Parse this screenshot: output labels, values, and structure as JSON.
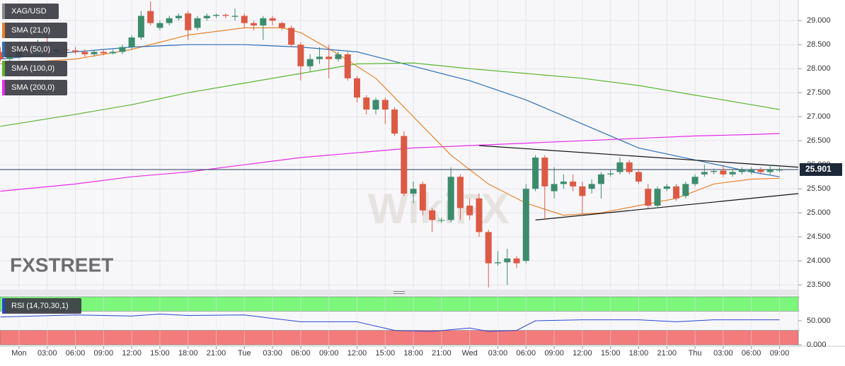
{
  "chart_data": [
    {
      "type": "candlestick",
      "name": "XAG/USD",
      "x": [
        -2,
        -1,
        0,
        1,
        2,
        3,
        4,
        5,
        6,
        7,
        8,
        9,
        10,
        11,
        12,
        13,
        14,
        15,
        16,
        17,
        18,
        19,
        20,
        21,
        22,
        23,
        24,
        25,
        26,
        27,
        28,
        29,
        30,
        31,
        32,
        33,
        34,
        35,
        36,
        37,
        38,
        39,
        40,
        41,
        42,
        43,
        44,
        45,
        46,
        47,
        48,
        49,
        50,
        51,
        52,
        53,
        54,
        55,
        56,
        57,
        58,
        59,
        60,
        61,
        62,
        63,
        64,
        65,
        66,
        67,
        68,
        69,
        70,
        71,
        72,
        73,
        74,
        75,
        76,
        77,
        78,
        79,
        80,
        81
      ],
      "open": [
        28.35,
        28.2,
        28.25,
        28.45,
        28.4,
        28.45,
        28.35,
        28.4,
        28.38,
        28.35,
        28.3,
        28.35,
        28.32,
        28.35,
        28.45,
        28.65,
        29.2,
        28.85,
        28.95,
        29.05,
        29.15,
        28.85,
        29.05,
        29.1,
        29.12,
        29.08,
        29.1,
        28.95,
        28.9,
        29.05,
        28.95,
        28.85,
        28.5,
        28.05,
        28.2,
        28.25,
        28.2,
        28.3,
        27.8,
        27.4,
        27.15,
        27.35,
        27.15,
        26.6,
        25.4,
        25.6,
        25.05,
        24.85,
        24.85,
        25.75,
        25.15,
        25.3,
        24.6,
        23.95,
        23.97,
        24.05,
        24.0,
        25.5,
        26.15,
        25.45,
        25.6,
        25.65,
        25.55,
        25.5,
        25.6,
        25.8,
        25.85,
        26.05,
        25.85,
        25.5,
        25.15,
        25.5,
        25.55,
        25.35,
        25.6,
        25.8,
        25.85,
        25.88,
        25.8,
        25.85,
        25.85,
        25.9,
        25.85,
        25.88
      ],
      "high": [
        28.45,
        28.35,
        28.5,
        28.55,
        28.6,
        28.7,
        28.45,
        28.45,
        28.45,
        28.4,
        28.4,
        28.4,
        28.4,
        28.5,
        28.7,
        29.2,
        29.4,
        29.0,
        29.1,
        29.15,
        29.2,
        29.1,
        29.15,
        29.15,
        29.15,
        29.25,
        29.15,
        29.0,
        29.1,
        29.1,
        28.98,
        28.9,
        28.55,
        28.3,
        28.45,
        28.5,
        28.35,
        28.35,
        27.85,
        27.45,
        27.4,
        27.4,
        27.2,
        26.7,
        25.65,
        25.65,
        25.1,
        24.9,
        25.95,
        25.8,
        25.3,
        25.4,
        24.65,
        24.2,
        24.25,
        24.1,
        25.6,
        26.2,
        26.2,
        25.95,
        25.8,
        25.8,
        25.65,
        25.7,
        25.85,
        25.9,
        26.15,
        26.1,
        25.9,
        25.6,
        25.55,
        25.6,
        25.6,
        25.65,
        25.8,
        26.0,
        25.92,
        26.0,
        25.9,
        25.95,
        25.95,
        25.95,
        26.0,
        25.95
      ],
      "low": [
        28.15,
        28.1,
        28.2,
        28.3,
        28.35,
        28.3,
        28.3,
        28.3,
        28.3,
        28.25,
        28.25,
        28.28,
        28.3,
        28.3,
        28.4,
        28.6,
        28.9,
        28.8,
        28.9,
        29.0,
        28.6,
        28.8,
        29.0,
        29.05,
        29.05,
        29.0,
        28.85,
        28.8,
        28.6,
        28.9,
        28.8,
        28.45,
        27.75,
        27.95,
        28.1,
        27.8,
        28.15,
        27.75,
        27.3,
        27.05,
        27.05,
        26.85,
        26.6,
        25.35,
        25.2,
        24.95,
        24.6,
        24.8,
        24.8,
        24.85,
        24.85,
        24.5,
        23.45,
        23.9,
        23.5,
        23.85,
        23.95,
        25.45,
        24.85,
        25.3,
        25.5,
        25.45,
        24.95,
        25.4,
        25.3,
        25.75,
        25.8,
        25.8,
        25.6,
        25.1,
        25.1,
        25.45,
        25.25,
        25.3,
        25.55,
        25.75,
        25.8,
        25.75,
        25.75,
        25.8,
        25.8,
        25.8,
        25.8,
        25.85
      ],
      "close": [
        28.2,
        28.25,
        28.45,
        28.4,
        28.45,
        28.35,
        28.4,
        28.38,
        28.35,
        28.3,
        28.35,
        28.32,
        28.35,
        28.45,
        28.65,
        29.1,
        28.95,
        28.95,
        29.05,
        29.1,
        28.8,
        29.05,
        29.1,
        29.12,
        29.1,
        29.1,
        28.95,
        28.9,
        29.05,
        29.0,
        28.85,
        28.5,
        28.05,
        28.2,
        28.25,
        28.2,
        28.3,
        27.8,
        27.4,
        27.15,
        27.35,
        27.15,
        26.65,
        25.4,
        25.5,
        25.05,
        24.85,
        24.85,
        25.75,
        25.1,
        24.95,
        24.6,
        23.95,
        23.97,
        24.05,
        23.95,
        25.5,
        26.15,
        25.55,
        25.6,
        25.65,
        25.55,
        25.35,
        25.6,
        25.8,
        25.82,
        26.05,
        25.85,
        25.65,
        25.15,
        25.5,
        25.55,
        25.3,
        25.6,
        25.75,
        25.85,
        25.87,
        25.8,
        25.85,
        25.9,
        25.9,
        25.85,
        25.9,
        25.9
      ],
      "up_color": "#3c8c6c",
      "down_color": "#dc5a44",
      "lines": [
        {
          "name": "SMA (21,0)",
          "color": "#e8822a",
          "x": [
            -2,
            6,
            12,
            18,
            24,
            28,
            30,
            34,
            38,
            42,
            46,
            50,
            54,
            58,
            62,
            66,
            70,
            74,
            78,
            81
          ],
          "values": [
            28.1,
            28.2,
            28.4,
            28.7,
            28.85,
            28.85,
            28.75,
            28.3,
            27.8,
            27.0,
            26.2,
            25.6,
            25.2,
            24.95,
            25.0,
            25.15,
            25.3,
            25.6,
            25.7,
            25.72
          ]
        },
        {
          "name": "SMA (50,0)",
          "color": "#2e6fb5",
          "x": [
            -2,
            6,
            12,
            18,
            24,
            30,
            36,
            42,
            48,
            54,
            60,
            66,
            72,
            78,
            81
          ],
          "values": [
            28.2,
            28.35,
            28.45,
            28.5,
            28.5,
            28.45,
            28.35,
            28.05,
            27.75,
            27.35,
            26.85,
            26.35,
            26.1,
            25.85,
            25.75
          ]
        },
        {
          "name": "SMA (100,0)",
          "color": "#5ab52e",
          "x": [
            -2,
            6,
            12,
            18,
            24,
            30,
            36,
            42,
            48,
            54,
            60,
            66,
            72,
            78,
            81
          ],
          "values": [
            26.8,
            27.05,
            27.25,
            27.5,
            27.7,
            27.9,
            28.1,
            28.12,
            28.0,
            27.9,
            27.8,
            27.65,
            27.45,
            27.25,
            27.15
          ]
        },
        {
          "name": "SMA (200,0)",
          "color": "#e82ae8",
          "x": [
            -2,
            6,
            12,
            18,
            24,
            30,
            36,
            42,
            48,
            54,
            60,
            66,
            72,
            78,
            81
          ],
          "values": [
            25.45,
            25.6,
            25.75,
            25.85,
            26.0,
            26.15,
            26.25,
            26.35,
            26.4,
            26.45,
            26.5,
            26.55,
            26.6,
            26.63,
            26.65
          ]
        }
      ],
      "trendlines": [
        {
          "x": [
            49,
            83
          ],
          "values": [
            26.4,
            25.95
          ]
        },
        {
          "x": [
            55,
            83
          ],
          "values": [
            24.85,
            25.4
          ]
        }
      ],
      "last_price": 25.901,
      "xlim": [
        -2.03,
        83
      ],
      "ylim": [
        23.4,
        29.43
      ],
      "yticks": [
        {
          "value": 23.5,
          "label": "23.500"
        },
        {
          "value": 24,
          "label": "24.000"
        },
        {
          "value": 24.5,
          "label": "24.500"
        },
        {
          "value": 25,
          "label": "25.000"
        },
        {
          "value": 25.5,
          "label": "25.500"
        },
        {
          "value": 26,
          "label": "26.000"
        },
        {
          "value": 26.5,
          "label": "26.500"
        },
        {
          "value": 27,
          "label": "27.000"
        },
        {
          "value": 27.5,
          "label": "27.500"
        },
        {
          "value": 28,
          "label": "28.000"
        },
        {
          "value": 28.5,
          "label": "28.500"
        },
        {
          "value": 29,
          "label": "29.000"
        }
      ],
      "xticks": [
        {
          "value": 0,
          "label": "Mon"
        },
        {
          "value": 3,
          "label": "03:00"
        },
        {
          "value": 6,
          "label": "06:00"
        },
        {
          "value": 9,
          "label": "09:00"
        },
        {
          "value": 12,
          "label": "12:00"
        },
        {
          "value": 15,
          "label": "15:00"
        },
        {
          "value": 18,
          "label": "18:00"
        },
        {
          "value": 21,
          "label": "21:00"
        },
        {
          "value": 24,
          "label": "Tue"
        },
        {
          "value": 27,
          "label": "03:00"
        },
        {
          "value": 30,
          "label": "06:00"
        },
        {
          "value": 33,
          "label": "09:00"
        },
        {
          "value": 36,
          "label": "12:00"
        },
        {
          "value": 39,
          "label": "15:00"
        },
        {
          "value": 42,
          "label": "18:00"
        },
        {
          "value": 45,
          "label": "21:00"
        },
        {
          "value": 48,
          "label": "Wed"
        },
        {
          "value": 51,
          "label": "03:00"
        },
        {
          "value": 54,
          "label": "06:00"
        },
        {
          "value": 57,
          "label": "09:00"
        },
        {
          "value": 60,
          "label": "12:00"
        },
        {
          "value": 63,
          "label": "15:00"
        },
        {
          "value": 66,
          "label": "18:00"
        },
        {
          "value": 69,
          "label": "21:00"
        },
        {
          "value": 72,
          "label": "Thu"
        },
        {
          "value": 75,
          "label": "03:00"
        },
        {
          "value": 78,
          "label": "06:00"
        },
        {
          "value": 81,
          "label": "09:00"
        }
      ],
      "grid": true,
      "watermarks": [
        "FXSTREET",
        "WikiFX"
      ]
    },
    {
      "type": "line",
      "series": [
        {
          "name": "RSI (14,70,30,1)",
          "color": "#2a45d0",
          "x": [
            -2,
            6,
            12,
            15,
            18,
            24,
            30,
            36,
            40,
            44,
            48,
            50,
            53,
            55,
            60,
            66,
            70,
            74,
            81
          ],
          "values": [
            58,
            62,
            60,
            64,
            61,
            62,
            48,
            48,
            30,
            28,
            35,
            28,
            30,
            50,
            52,
            52,
            48,
            52,
            52
          ]
        }
      ],
      "bands": [
        {
          "range": [
            70,
            100
          ],
          "color": "#7cf77c"
        },
        {
          "range": [
            0,
            30
          ],
          "color": "#f27b7b"
        }
      ],
      "ylim": [
        0,
        100
      ],
      "yticks": [
        {
          "value": 50,
          "label": "50.000"
        },
        {
          "value": 0,
          "label": "0.000"
        }
      ]
    }
  ]
}
